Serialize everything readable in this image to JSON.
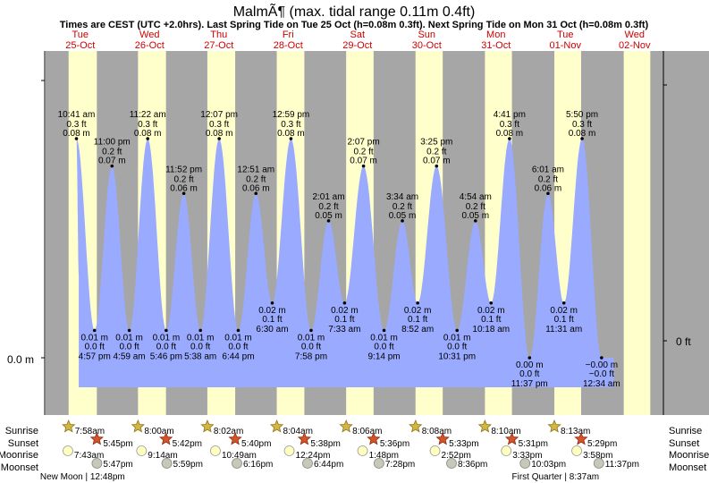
{
  "chart_data": {
    "type": "area",
    "title": "MalmÃ¶ (max. tidal range 0.11m 0.4ft)",
    "subtitle": "Times are CEST (UTC +2.0hrs). Last Spring Tide on Tue 25 Oct (h=0.08m 0.3ft). Next Spring Tide on Mon 31 Oct (h=0.08m 0.3ft)",
    "ylabel_left": "0.0 m",
    "ylabel_right": "0 ft",
    "ylim": [
      -0.05,
      0.105
    ],
    "colors": {
      "night": "#a6a6a6",
      "day": "#ffffcc",
      "tide": "#99aaff",
      "date": "#cc0000"
    },
    "days": [
      {
        "name": "Tue",
        "date": "25-Oct",
        "sunrise_h": 7.97,
        "sunset_h": 17.75
      },
      {
        "name": "Wed",
        "date": "26-Oct",
        "sunrise_h": 8.0,
        "sunset_h": 17.7
      },
      {
        "name": "Thu",
        "date": "27-Oct",
        "sunrise_h": 8.03,
        "sunset_h": 17.67
      },
      {
        "name": "Fri",
        "date": "28-Oct",
        "sunrise_h": 8.07,
        "sunset_h": 17.63
      },
      {
        "name": "Sat",
        "date": "29-Oct",
        "sunrise_h": 8.1,
        "sunset_h": 17.6
      },
      {
        "name": "Sun",
        "date": "30-Oct",
        "sunrise_h": 8.13,
        "sunset_h": 17.55
      },
      {
        "name": "Mon",
        "date": "31-Oct",
        "sunrise_h": 8.17,
        "sunset_h": 17.52
      },
      {
        "name": "Tue",
        "date": "01-Nov",
        "sunrise_h": 8.22,
        "sunset_h": 17.48
      },
      {
        "name": "Wed",
        "date": "02-Nov",
        "sunrise_h": 8.25,
        "sunset_h": 17.45
      }
    ],
    "tide_series_start": {
      "t": 11.5,
      "h": 0.03
    },
    "tide_series_end": {
      "t": 196.8,
      "h": 0.0
    },
    "tides": [
      {
        "type": "high",
        "t": 10.68,
        "h": 0.08,
        "time": "10:41 am",
        "m": "0.08 m",
        "ft": "0.3 ft"
      },
      {
        "type": "low",
        "t": 16.95,
        "h": 0.01,
        "time": "4:57 pm",
        "m": "0.01 m",
        "ft": "0.0 ft"
      },
      {
        "type": "high",
        "t": 23.0,
        "h": 0.07,
        "time": "11:00 pm",
        "m": "0.07 m",
        "ft": "0.2 ft"
      },
      {
        "type": "low",
        "t": 28.98,
        "h": 0.01,
        "time": "4:59 am",
        "m": "0.01 m",
        "ft": "0.0 ft"
      },
      {
        "type": "high",
        "t": 35.37,
        "h": 0.08,
        "time": "11:22 am",
        "m": "0.08 m",
        "ft": "0.3 ft"
      },
      {
        "type": "low",
        "t": 41.77,
        "h": 0.01,
        "time": "5:46 pm",
        "m": "0.01 m",
        "ft": "0.0 ft"
      },
      {
        "type": "high",
        "t": 47.87,
        "h": 0.06,
        "time": "11:52 pm",
        "m": "0.06 m",
        "ft": "0.2 ft"
      },
      {
        "type": "low",
        "t": 53.63,
        "h": 0.01,
        "time": "5:38 am",
        "m": "0.01 m",
        "ft": "0.0 ft"
      },
      {
        "type": "high",
        "t": 60.12,
        "h": 0.08,
        "time": "12:07 pm",
        "m": "0.08 m",
        "ft": "0.3 ft"
      },
      {
        "type": "low",
        "t": 66.73,
        "h": 0.01,
        "time": "6:44 pm",
        "m": "0.01 m",
        "ft": "0.0 ft"
      },
      {
        "type": "high",
        "t": 72.85,
        "h": 0.06,
        "time": "12:51 am",
        "m": "0.06 m",
        "ft": "0.2 ft"
      },
      {
        "type": "low",
        "t": 78.5,
        "h": 0.02,
        "time": "6:30 am",
        "m": "0.02 m",
        "ft": "0.1 ft"
      },
      {
        "type": "high",
        "t": 84.98,
        "h": 0.08,
        "time": "12:59 pm",
        "m": "0.08 m",
        "ft": "0.3 ft"
      },
      {
        "type": "low",
        "t": 91.97,
        "h": 0.01,
        "time": "7:58 pm",
        "m": "0.01 m",
        "ft": "0.0 ft"
      },
      {
        "type": "high",
        "t": 98.02,
        "h": 0.05,
        "time": "2:01 am",
        "m": "0.05 m",
        "ft": "0.2 ft"
      },
      {
        "type": "low",
        "t": 103.55,
        "h": 0.02,
        "time": "7:33 am",
        "m": "0.02 m",
        "ft": "0.1 ft"
      },
      {
        "type": "high",
        "t": 110.12,
        "h": 0.07,
        "time": "2:07 pm",
        "m": "0.07 m",
        "ft": "0.2 ft"
      },
      {
        "type": "low",
        "t": 117.23,
        "h": 0.01,
        "time": "9:14 pm",
        "m": "0.01 m",
        "ft": "0.0 ft"
      },
      {
        "type": "high",
        "t": 123.57,
        "h": 0.05,
        "time": "3:34 am",
        "m": "0.05 m",
        "ft": "0.2 ft"
      },
      {
        "type": "low",
        "t": 128.87,
        "h": 0.02,
        "time": "8:52 am",
        "m": "0.02 m",
        "ft": "0.1 ft"
      },
      {
        "type": "high",
        "t": 135.42,
        "h": 0.07,
        "time": "3:25 pm",
        "m": "0.07 m",
        "ft": "0.2 ft"
      },
      {
        "type": "low",
        "t": 142.52,
        "h": 0.01,
        "time": "10:31 pm",
        "m": "0.01 m",
        "ft": "0.0 ft"
      },
      {
        "type": "high",
        "t": 148.9,
        "h": 0.05,
        "time": "4:54 am",
        "m": "0.05 m",
        "ft": "0.2 ft"
      },
      {
        "type": "low",
        "t": 154.3,
        "h": 0.02,
        "time": "10:18 am",
        "m": "0.02 m",
        "ft": "0.1 ft"
      },
      {
        "type": "high",
        "t": 160.68,
        "h": 0.08,
        "time": "4:41 pm",
        "m": "0.08 m",
        "ft": "0.3 ft"
      },
      {
        "type": "low",
        "t": 167.62,
        "h": 0.0,
        "time": "11:37 pm",
        "m": "0.00 m",
        "ft": "0.0 ft"
      },
      {
        "type": "high",
        "t": 174.02,
        "h": 0.06,
        "time": "6:01 am",
        "m": "0.06 m",
        "ft": "0.2 ft"
      },
      {
        "type": "low",
        "t": 179.52,
        "h": 0.02,
        "time": "11:31 am",
        "m": "0.02 m",
        "ft": "0.1 ft"
      },
      {
        "type": "high",
        "t": 185.83,
        "h": 0.08,
        "time": "5:50 pm",
        "m": "0.08 m",
        "ft": "0.3 ft"
      },
      {
        "type": "low",
        "t": 192.57,
        "h": 0.0,
        "time": "12:34 am",
        "m": "−0.00 m",
        "ft": "−0.0 ft"
      }
    ],
    "row_labels": {
      "sunrise": "Sunrise",
      "sunset": "Sunset",
      "moonrise": "Moonrise",
      "moonset": "Moonset"
    },
    "sunrises": [
      {
        "t": 7.97,
        "label": "7:58am"
      },
      {
        "t": 32.0,
        "label": "8:00am"
      },
      {
        "t": 56.03,
        "label": "8:02am"
      },
      {
        "t": 80.07,
        "label": "8:04am"
      },
      {
        "t": 104.1,
        "label": "8:06am"
      },
      {
        "t": 128.13,
        "label": "8:08am"
      },
      {
        "t": 152.17,
        "label": "8:10am"
      },
      {
        "t": 176.22,
        "label": "8:13am"
      }
    ],
    "sunsets": [
      {
        "t": 17.75,
        "label": "5:45pm"
      },
      {
        "t": 41.7,
        "label": "5:42pm"
      },
      {
        "t": 65.67,
        "label": "5:40pm"
      },
      {
        "t": 89.63,
        "label": "5:38pm"
      },
      {
        "t": 113.6,
        "label": "5:36pm"
      },
      {
        "t": 137.55,
        "label": "5:33pm"
      },
      {
        "t": 161.52,
        "label": "5:31pm"
      },
      {
        "t": 185.48,
        "label": "5:29pm"
      }
    ],
    "moonrises": [
      {
        "t": 7.72,
        "label": "7:43am"
      },
      {
        "t": 33.23,
        "label": "9:14am"
      },
      {
        "t": 58.82,
        "label": "10:49am"
      },
      {
        "t": 84.4,
        "label": "12:24pm"
      },
      {
        "t": 109.8,
        "label": "1:48pm"
      },
      {
        "t": 134.87,
        "label": "2:52pm"
      },
      {
        "t": 159.55,
        "label": "3:33pm"
      },
      {
        "t": 183.97,
        "label": "3:58pm"
      }
    ],
    "moonsets": [
      {
        "t": 17.78,
        "label": "5:47pm"
      },
      {
        "t": 41.98,
        "label": "5:59pm"
      },
      {
        "t": 66.27,
        "label": "6:16pm"
      },
      {
        "t": 90.73,
        "label": "6:44pm"
      },
      {
        "t": 115.47,
        "label": "7:28pm"
      },
      {
        "t": 140.6,
        "label": "8:36pm"
      },
      {
        "t": 166.05,
        "label": "10:03pm"
      },
      {
        "t": 191.62,
        "label": "11:37pm"
      }
    ],
    "moon_phases": [
      {
        "t": 12.8,
        "label": "New Moon | 12:48pm"
      },
      {
        "t": 176.62,
        "label": "First Quarter | 8:37am"
      }
    ]
  }
}
